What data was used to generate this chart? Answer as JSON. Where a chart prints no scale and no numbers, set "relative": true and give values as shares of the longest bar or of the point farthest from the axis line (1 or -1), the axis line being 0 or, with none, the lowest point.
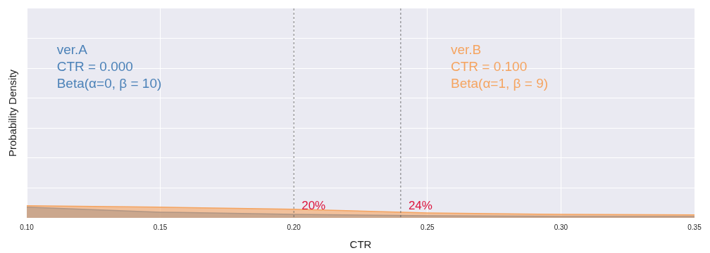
{
  "chart_data": {
    "type": "area",
    "xlabel": "CTR",
    "ylabel": "Probability Density",
    "relative": true,
    "x": [
      0.1,
      0.15,
      0.2,
      0.25,
      0.3,
      0.35
    ],
    "series": [
      {
        "color": "#4c82b8",
        "values": [
          0.88,
          0.47,
          0.29,
          0.18,
          0.12,
          0.12
        ]
      },
      {
        "color": "#f5a460",
        "values": [
          1,
          0.88,
          0.71,
          0.41,
          0.29,
          0.24
        ]
      }
    ],
    "xlim": [
      0.1,
      0.35
    ],
    "xticks": [
      {
        "value": 0.1,
        "label": "0.10"
      },
      {
        "value": 0.15,
        "label": "0.15"
      },
      {
        "value": 0.2,
        "label": "0.20"
      },
      {
        "value": 0.25,
        "label": "0.25"
      },
      {
        "value": 0.3,
        "label": "0.30"
      },
      {
        "value": 0.35,
        "label": "0.35"
      }
    ],
    "ref_lines": [
      {
        "axis": "x",
        "value": 0.2,
        "label": "20%",
        "color": "#555555",
        "line_style": "dashed"
      },
      {
        "axis": "x",
        "value": 0.24,
        "label": "24%",
        "color": "#555555",
        "line_style": "dashed"
      }
    ],
    "annotations": [
      "ver.A\nCTR = 0.000\nBeta(α=0, β = 10)",
      "ver.B\nCTR = 0.100\nBeta(α=1, β = 9)"
    ],
    "grid": true,
    "legend": false
  }
}
